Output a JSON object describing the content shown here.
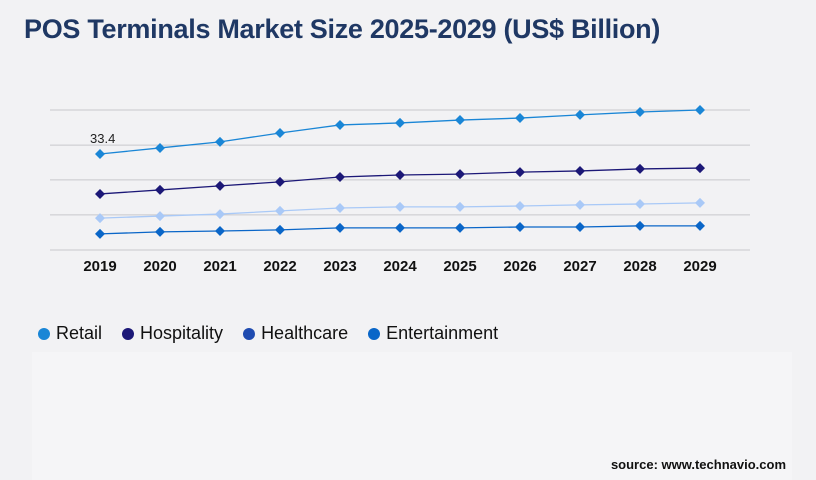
{
  "chart_data": {
    "type": "line",
    "title": "POS Terminals Market Size 2025-2029 (US$ Billion)",
    "xlabel": "",
    "ylabel": "",
    "x": [
      "2019",
      "2020",
      "2021",
      "2022",
      "2023",
      "2024",
      "2025",
      "2026",
      "2027",
      "2028",
      "2029"
    ],
    "ylim": [
      0,
      48.7
    ],
    "grid": true,
    "gridlines": [
      0,
      12.2,
      24.4,
      36.5,
      48.7
    ],
    "legend_position": "bottom-left",
    "annotations": [
      {
        "series": "Retail",
        "x": "2019",
        "text": "33.4"
      }
    ],
    "series": [
      {
        "name": "Retail",
        "color": "#1a86d6",
        "legend_color": "#1a86d6",
        "values": [
          33.4,
          35.5,
          37.6,
          40.7,
          43.5,
          44.2,
          45.2,
          45.9,
          47.0,
          48.0,
          48.7
        ]
      },
      {
        "name": "Hospitality",
        "color": "#1c1877",
        "legend_color": "#1c1877",
        "values": [
          19.5,
          20.9,
          22.3,
          23.7,
          25.4,
          26.1,
          26.4,
          27.1,
          27.5,
          28.2,
          28.5
        ]
      },
      {
        "name": "Healthcare",
        "color": "#a9c9f7",
        "legend_color": "#1f4bb0",
        "values": [
          11.1,
          11.8,
          12.5,
          13.6,
          14.6,
          15.0,
          15.0,
          15.3,
          15.7,
          16.0,
          16.4
        ]
      },
      {
        "name": "Entertainment",
        "color": "#0a66c8",
        "legend_color": "#0a66c8",
        "values": [
          5.6,
          6.3,
          6.6,
          7.0,
          7.7,
          7.7,
          7.7,
          8.0,
          8.0,
          8.4,
          8.4
        ]
      }
    ]
  },
  "source": "source: www.technavio.com"
}
